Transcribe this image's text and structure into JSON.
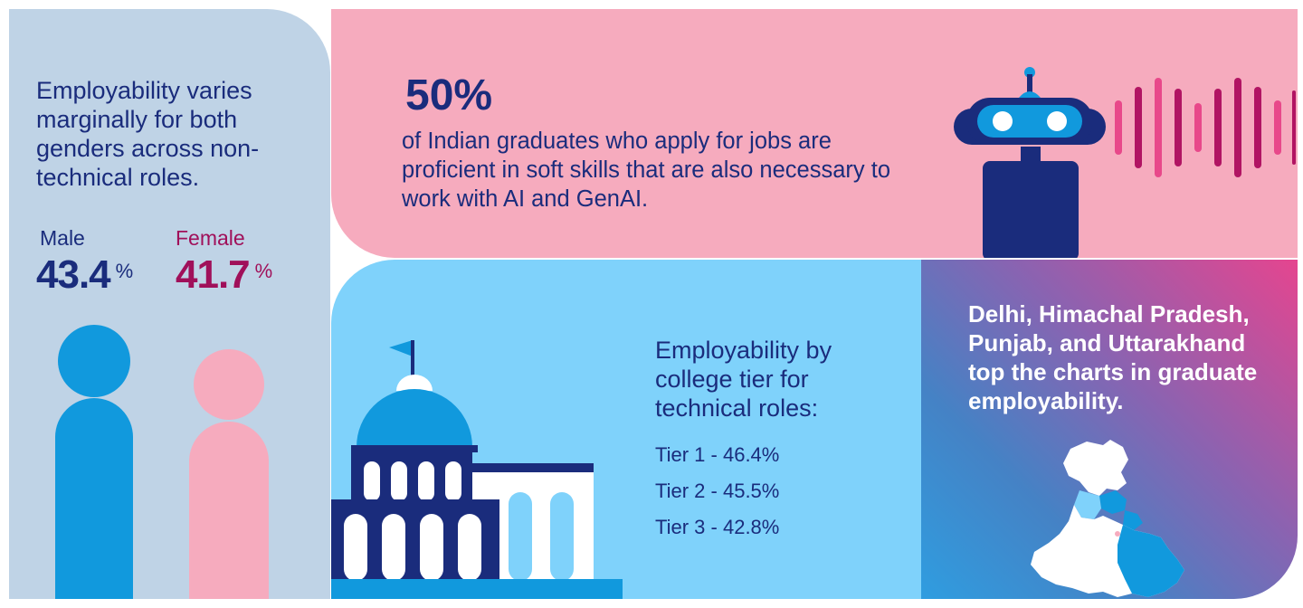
{
  "gender": {
    "headline": "Employability varies marginally for both genders across non-technical roles.",
    "male": {
      "label": "Male",
      "value": "43.4",
      "unit": "%"
    },
    "female": {
      "label": "Female",
      "value": "41.7",
      "unit": "%"
    }
  },
  "ai_skills": {
    "stat": "50%",
    "description": "of Indian graduates who apply for jobs are proficient in soft skills that are also necessary to work with AI and GenAI."
  },
  "college_tier": {
    "title": "Employability by college tier for technical roles:",
    "tiers": [
      {
        "label": "Tier 1 - 46.4%",
        "value": 46.4
      },
      {
        "label": "Tier 2 - 45.5%",
        "value": 45.5
      },
      {
        "label": "Tier 3 - 42.8%",
        "value": 42.8
      }
    ]
  },
  "states": {
    "message": "Delhi, Himachal Pradesh, Punjab, and Uttarakhand top the charts in graduate employability."
  },
  "colors": {
    "navy": "#1a2c7c",
    "magenta": "#a0105a",
    "pink": "#f6abbe",
    "light_blue": "#7fd2fb",
    "blue": "#1199dd",
    "slate": "#bfd3e6"
  }
}
